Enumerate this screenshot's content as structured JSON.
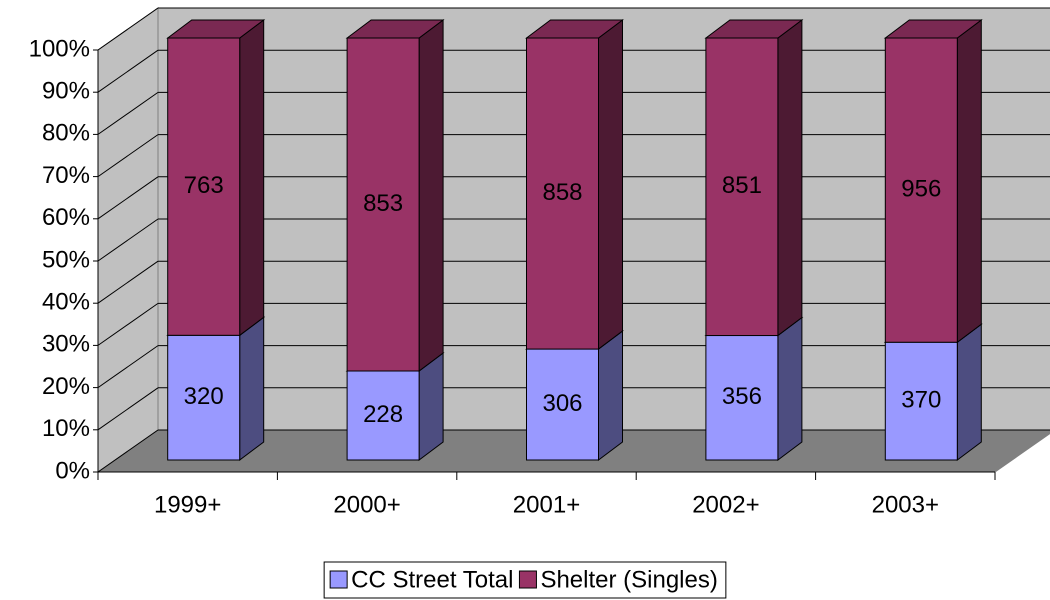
{
  "chart_data": {
    "type": "bar",
    "stack": "percent",
    "three_d": true,
    "grid": true,
    "categories": [
      "1999+",
      "2000+",
      "2001+",
      "2002+",
      "2003+"
    ],
    "series": [
      {
        "name": "CC Street Total",
        "color": "#9999ff",
        "values": [
          320,
          228,
          306,
          356,
          370
        ]
      },
      {
        "name": "Shelter (Singles)",
        "color": "#993366",
        "values": [
          763,
          853,
          858,
          851,
          956
        ]
      }
    ],
    "ylim": [
      0,
      100
    ],
    "yticks": [
      {
        "value": 0,
        "label": "0%"
      },
      {
        "value": 10,
        "label": "10%"
      },
      {
        "value": 20,
        "label": "20%"
      },
      {
        "value": 30,
        "label": "30%"
      },
      {
        "value": 40,
        "label": "40%"
      },
      {
        "value": 50,
        "label": "50%"
      },
      {
        "value": 60,
        "label": "60%"
      },
      {
        "value": 70,
        "label": "70%"
      },
      {
        "value": 80,
        "label": "80%"
      },
      {
        "value": 90,
        "label": "90%"
      },
      {
        "value": 100,
        "label": "100%"
      }
    ],
    "legend": "bottom"
  }
}
